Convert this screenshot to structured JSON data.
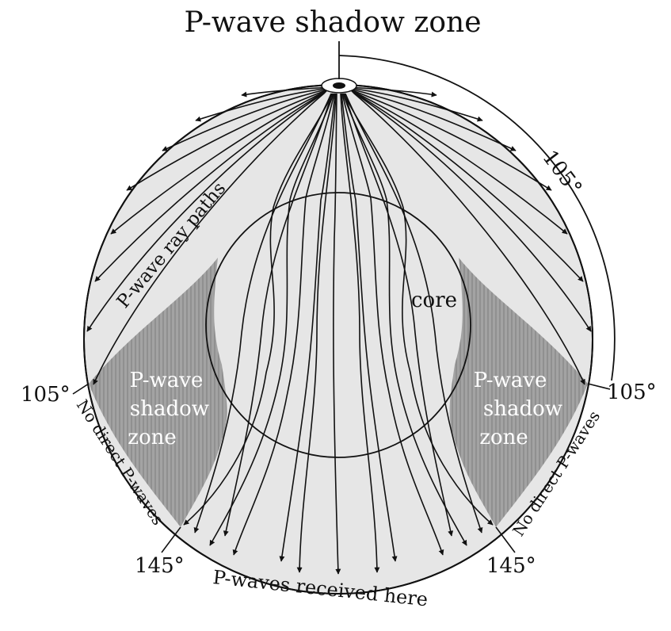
{
  "title": "P-wave shadow zone",
  "labels": {
    "core": "core",
    "ray_paths": "P-wave ray paths",
    "shadow_left_1": "P-wave",
    "shadow_left_2": "shadow",
    "shadow_left_3": "zone",
    "shadow_right_1": "P-wave",
    "shadow_right_2": "shadow",
    "shadow_right_3": "zone",
    "no_direct_left": "No direct P-waves",
    "no_direct_right": "No direct P-waves",
    "received": "P-waves received here",
    "angle_top": "105°",
    "angle_left": "105°",
    "angle_right": "105°",
    "angle_bl": "145°",
    "angle_br": "145°"
  },
  "colors": {
    "mantle_fill": "#e6e6e6",
    "shadow_fill": "#9a9a9a",
    "stroke": "#111111"
  }
}
